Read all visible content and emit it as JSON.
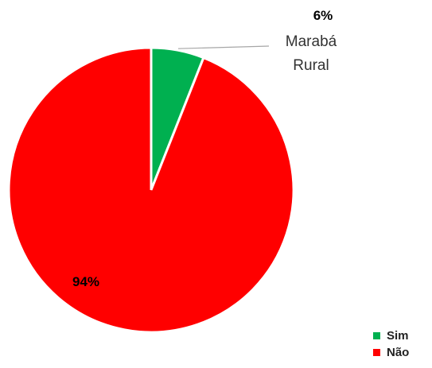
{
  "chart_data": {
    "type": "pie",
    "title": "",
    "categories": [
      "Sim",
      "Não"
    ],
    "values": [
      6,
      94
    ],
    "value_labels": [
      "6%",
      "94%"
    ],
    "colors": [
      "#00b050",
      "#ff0000"
    ],
    "annotations": [
      {
        "series_point": "Sim",
        "lines": [
          "Marabá",
          "Rural"
        ]
      }
    ],
    "legend": {
      "placement": "bottom-right",
      "entries": [
        "Sim",
        "Não"
      ]
    }
  }
}
